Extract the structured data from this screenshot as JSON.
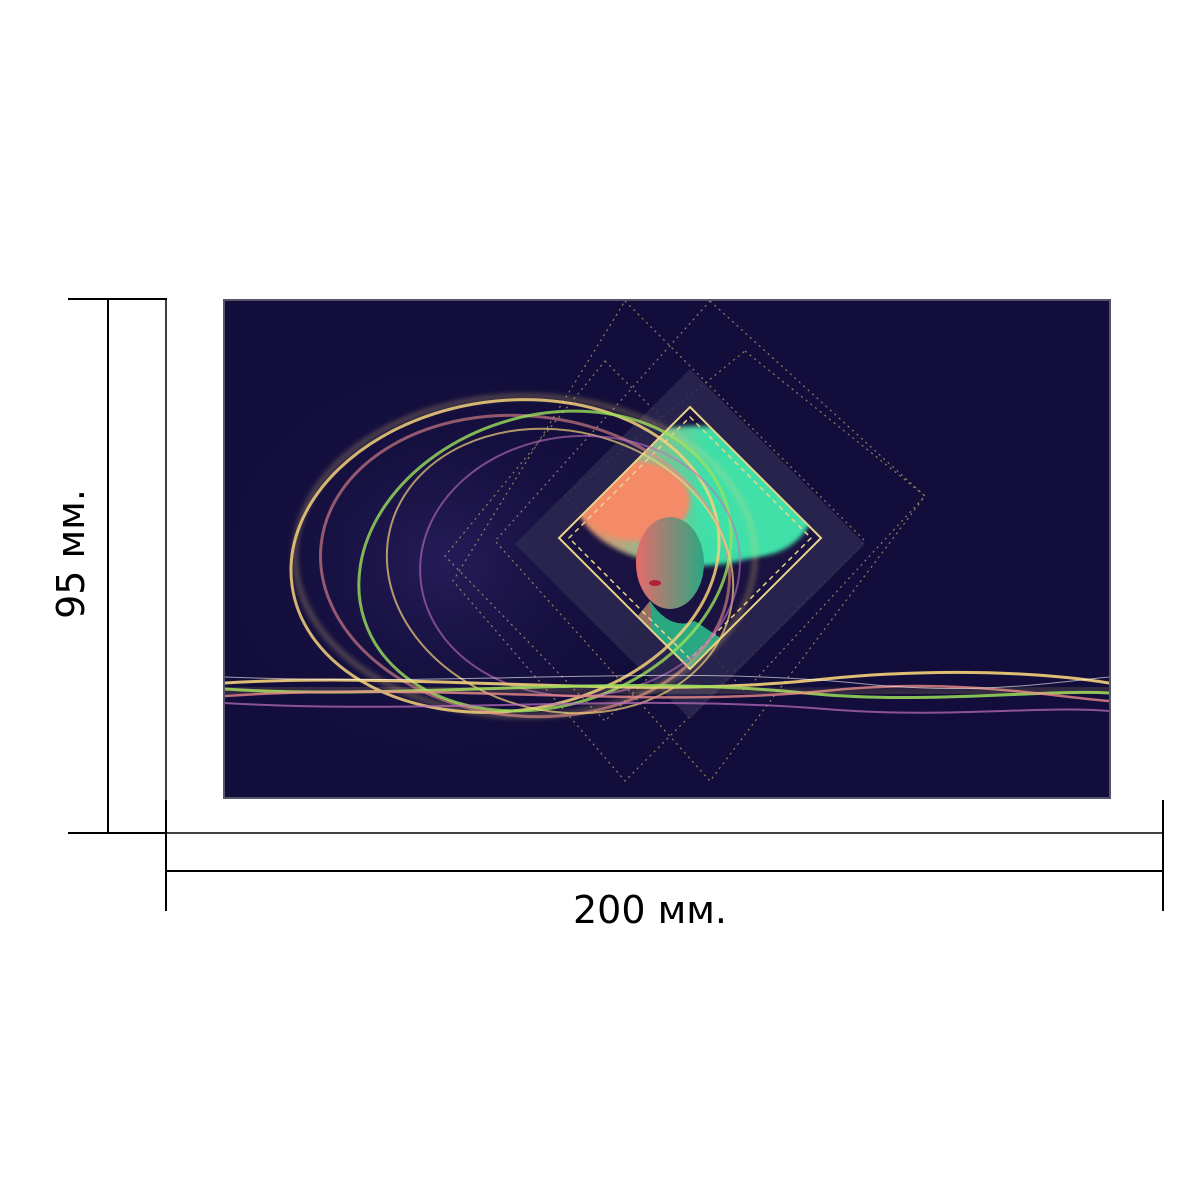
{
  "dimensions": {
    "height_label": "95 мм.",
    "width_label": "200 мм."
  },
  "artwork": {
    "background_color": "#120d3a",
    "frame_accent_color": "#e8d48a",
    "light_colors": [
      "#f4d27a",
      "#e88a8a",
      "#9be05a",
      "#c070c0"
    ],
    "portrait_hair_colors": [
      "#3fe0a8",
      "#f48a68"
    ]
  }
}
